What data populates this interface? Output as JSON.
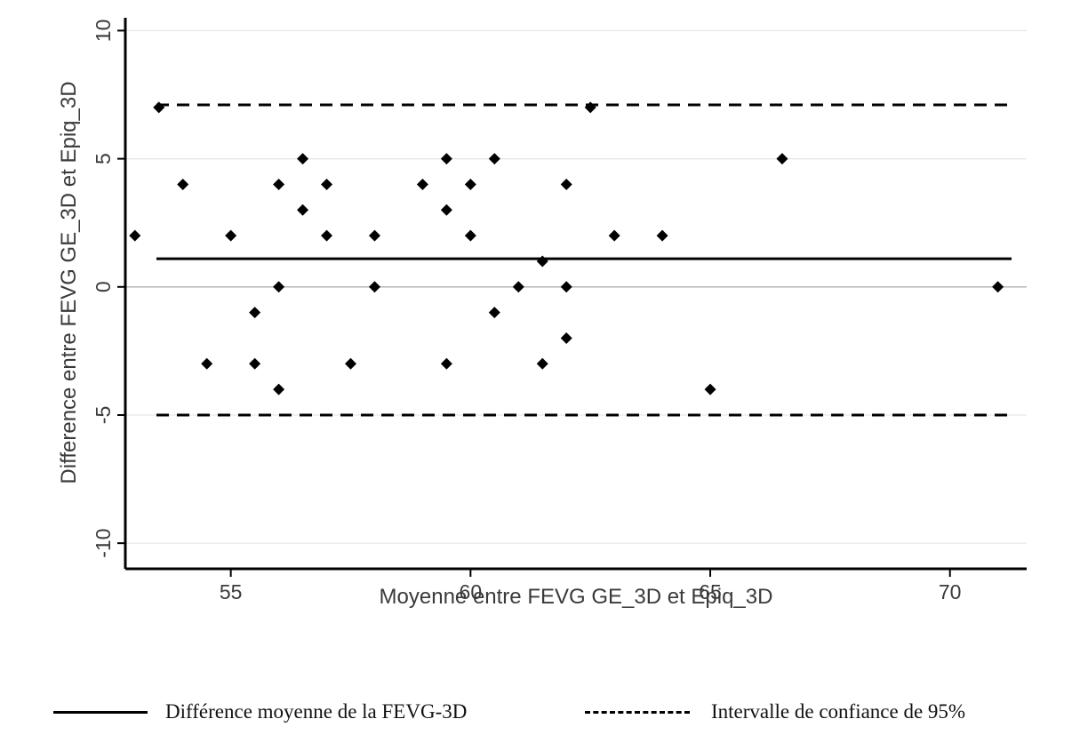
{
  "chart_data": {
    "type": "scatter",
    "xlabel": "Moyenne entre FEVG GE_3D et Epiq_3D",
    "ylabel": "Difference entre FEVG GE_3D et Epiq_3D",
    "xlim": [
      52.8,
      71.6
    ],
    "ylim": [
      -11,
      10.5
    ],
    "x_ticks": [
      55,
      60,
      65,
      70
    ],
    "y_ticks": [
      -10,
      -5,
      0,
      5,
      10
    ],
    "x_tick_labels": [
      "55",
      "60",
      "65",
      "70"
    ],
    "y_tick_labels": [
      "-10",
      "-5",
      "0",
      "5",
      "10"
    ],
    "grid": "horizontal",
    "mean_difference": 1.1,
    "upper_limit": 7.1,
    "lower_limit": -5.0,
    "points": [
      [
        53,
        2
      ],
      [
        53.5,
        7
      ],
      [
        54,
        4
      ],
      [
        54.5,
        -3
      ],
      [
        55,
        2
      ],
      [
        55.5,
        -1
      ],
      [
        55.5,
        -3
      ],
      [
        56,
        4
      ],
      [
        56,
        0
      ],
      [
        56,
        -4
      ],
      [
        56.5,
        5
      ],
      [
        56.5,
        3
      ],
      [
        57,
        4
      ],
      [
        57,
        2
      ],
      [
        57.5,
        -3
      ],
      [
        58,
        2
      ],
      [
        58,
        0
      ],
      [
        59,
        4
      ],
      [
        59.5,
        5
      ],
      [
        59.5,
        3
      ],
      [
        59.5,
        -3
      ],
      [
        60,
        4
      ],
      [
        60,
        2
      ],
      [
        60.5,
        5
      ],
      [
        60.5,
        -1
      ],
      [
        61,
        0
      ],
      [
        61.5,
        1
      ],
      [
        61.5,
        -3
      ],
      [
        62,
        4
      ],
      [
        62,
        0
      ],
      [
        62,
        -2
      ],
      [
        62.5,
        7
      ],
      [
        63,
        2
      ],
      [
        64,
        2
      ],
      [
        65,
        -4
      ],
      [
        66.5,
        5
      ],
      [
        71,
        0
      ]
    ]
  },
  "legend": {
    "mean_label": "Différence moyenne de la FEVG-3D",
    "ci_label": "Intervalle de confiance de 95%"
  },
  "colors": {
    "marks": "#000000",
    "grid": "#e6e6e6",
    "zero_line": "#bdbdbd",
    "text": "#3a3a3a"
  }
}
